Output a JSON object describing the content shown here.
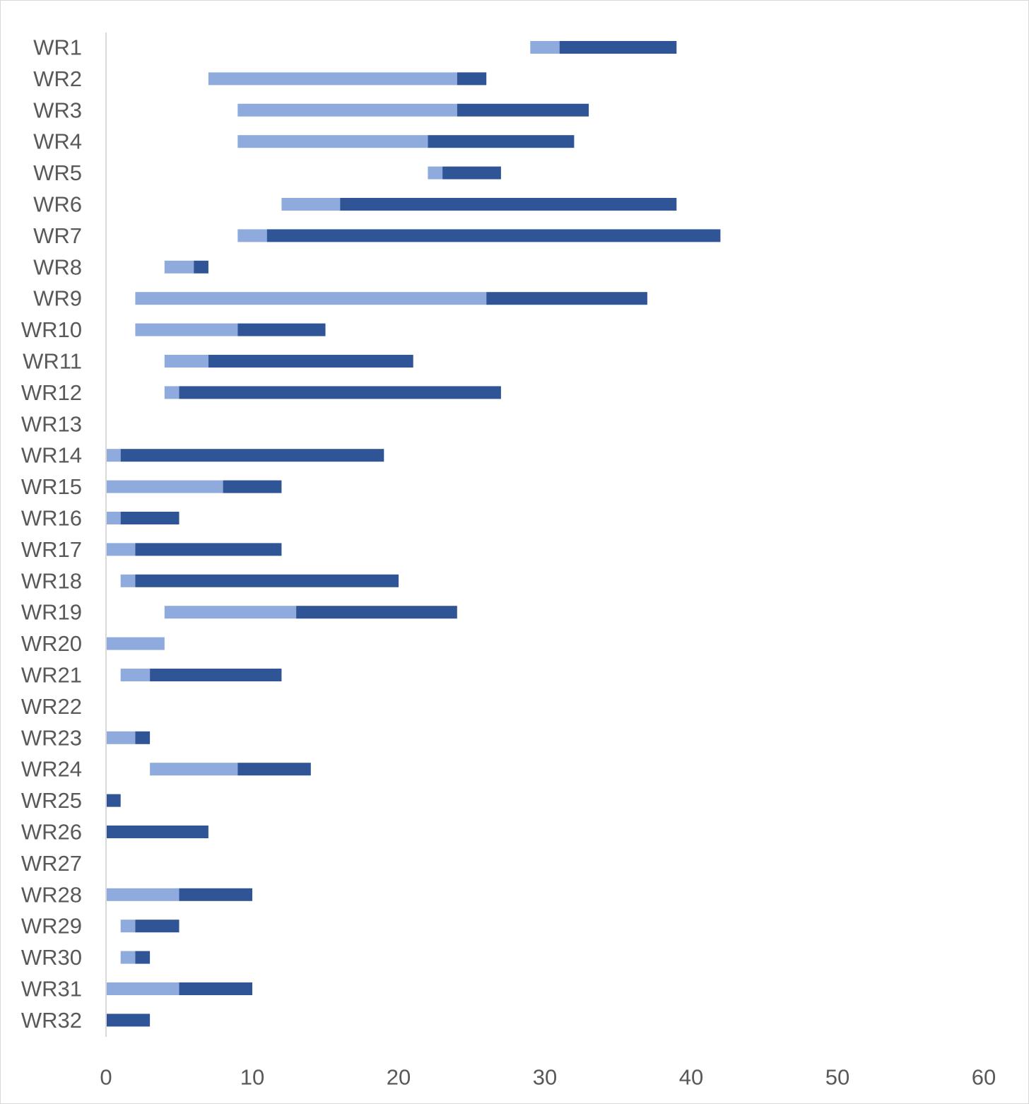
{
  "chart_data": {
    "type": "bar",
    "orientation": "horizontal",
    "stacked": true,
    "title": "",
    "xlabel": "",
    "ylabel": "",
    "xlim": [
      0,
      60
    ],
    "x_ticks": [
      0,
      10,
      20,
      30,
      40,
      50,
      60
    ],
    "grid": false,
    "legend": "none",
    "categories": [
      "WR1",
      "WR2",
      "WR3",
      "WR4",
      "WR5",
      "WR6",
      "WR7",
      "WR8",
      "WR9",
      "WR10",
      "WR11",
      "WR12",
      "WR13",
      "WR14",
      "WR15",
      "WR16",
      "WR17",
      "WR18",
      "WR19",
      "WR20",
      "WR21",
      "WR22",
      "WR23",
      "WR24",
      "WR25",
      "WR26",
      "WR27",
      "WR28",
      "WR29",
      "WR30",
      "WR31",
      "WR32"
    ],
    "series": [
      {
        "role": "offset (invisible)",
        "color": "none",
        "values": [
          29,
          7,
          9,
          9,
          22,
          12,
          9,
          4,
          2,
          2,
          4,
          4,
          0,
          0,
          0,
          0,
          0,
          1,
          4,
          0,
          1,
          0,
          0,
          3,
          0,
          0,
          0,
          0,
          1,
          1,
          0,
          0
        ]
      },
      {
        "role": "light segment",
        "color": "#8faadc",
        "values": [
          2,
          17,
          15,
          13,
          1,
          4,
          2,
          2,
          24,
          7,
          3,
          1,
          0,
          1,
          8,
          1,
          2,
          1,
          9,
          4,
          2,
          0,
          2,
          6,
          0,
          0,
          0,
          5,
          1,
          1,
          5,
          0
        ]
      },
      {
        "role": "dark segment",
        "color": "#2f5597",
        "values": [
          8,
          2,
          9,
          10,
          4,
          23,
          31,
          1,
          11,
          6,
          14,
          22,
          0,
          18,
          4,
          4,
          10,
          18,
          11,
          0,
          9,
          0,
          1,
          5,
          1,
          7,
          0,
          5,
          3,
          1,
          5,
          3
        ]
      }
    ],
    "colors": {
      "axis_line": "#d9d9d9",
      "tick_text": "#595959",
      "light_bar": "#8faadc",
      "dark_bar": "#2f5597"
    }
  }
}
